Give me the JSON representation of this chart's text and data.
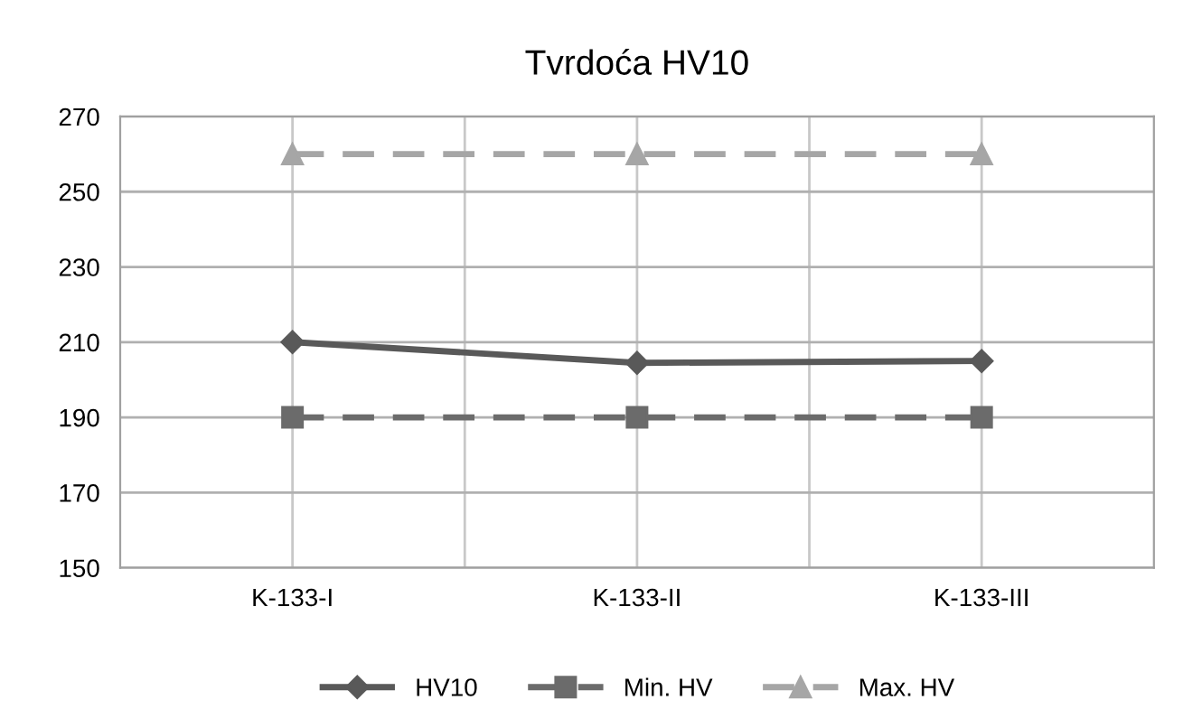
{
  "chart_data": {
    "type": "line",
    "title": "Tvrdoća HV10",
    "categories": [
      "K-133-I",
      "K-133-II",
      "K-133-III"
    ],
    "series": [
      {
        "name": "HV10",
        "color": "#595959",
        "values": [
          210,
          204.5,
          205
        ],
        "marker": "diamond",
        "line_style": "solid"
      },
      {
        "name": "Min. HV",
        "color": "#6b6b6b",
        "values": [
          190,
          190,
          190
        ],
        "marker": "square",
        "line_style": "dashed"
      },
      {
        "name": "Max. HV",
        "color": "#a6a6a6",
        "values": [
          260,
          260,
          260
        ],
        "marker": "triangle",
        "line_style": "dashed"
      }
    ],
    "ylim": [
      150,
      270
    ],
    "yticks": [
      150,
      170,
      190,
      210,
      230,
      250,
      270
    ],
    "grid": true,
    "legend": "bottom"
  }
}
